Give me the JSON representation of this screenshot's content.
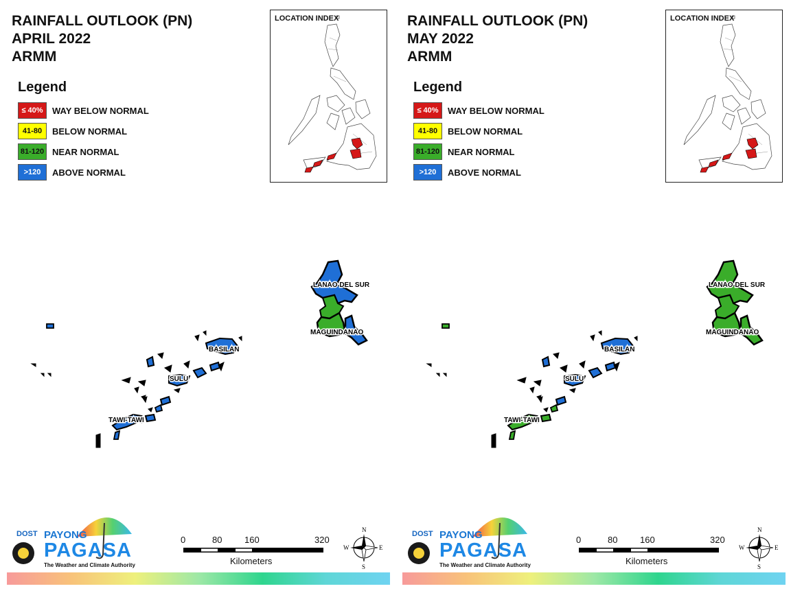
{
  "panels": [
    {
      "title_line1": "RAINFALL OUTLOOK (PN)",
      "title_line2": "APRIL 2022",
      "title_line3": "ARMM",
      "region_fill": {
        "lanao_del_sur": "#1f6fd6",
        "lanao_del_sur_mid": "#3aad2a",
        "maguindanao": "#3aad2a",
        "maguindanao_east": "#1f6fd6",
        "basilan": "#1f6fd6",
        "sulu": "#1f6fd6",
        "tawi_tawi": "#1f6fd6",
        "small_islands": "#1f6fd6"
      }
    },
    {
      "title_line1": "RAINFALL OUTLOOK (PN)",
      "title_line2": "MAY 2022",
      "title_line3": "ARMM",
      "region_fill": {
        "lanao_del_sur": "#3aad2a",
        "lanao_del_sur_mid": "#3aad2a",
        "maguindanao": "#3aad2a",
        "maguindanao_east": "#3aad2a",
        "basilan": "#1f6fd6",
        "sulu": "#1f6fd6",
        "tawi_tawi": "#3aad2a",
        "small_islands": "#3aad2a"
      }
    }
  ],
  "legend": {
    "title": "Legend",
    "items": [
      {
        "code": "≤ 40%",
        "label": "WAY BELOW NORMAL",
        "color": "#d51818"
      },
      {
        "code": "41-80",
        "label": "BELOW NORMAL",
        "color": "#ffff00"
      },
      {
        "code": "81-120",
        "label": "NEAR NORMAL",
        "color": "#3aad2a"
      },
      {
        "code": ">120",
        "label": "ABOVE NORMAL",
        "color": "#1f6fd6"
      }
    ]
  },
  "location_index": {
    "title": "LOCATION INDEX",
    "highlight_color": "#d51818"
  },
  "labels": {
    "lanao_del_sur": "LANAO DEL SUR",
    "maguindanao": "MAGUINDANAO",
    "basilan": "BASILAN",
    "sulu": "SULU",
    "tawi_tawi": "TAWI-TAWI"
  },
  "scale_bar": {
    "ticks": [
      "0",
      "80",
      "160",
      "320"
    ],
    "unit": "Kilometers"
  },
  "compass": {
    "n": "N",
    "s": "S",
    "e": "E",
    "w": "W"
  },
  "logo": {
    "dost": "DOST",
    "payong": "PAYONG",
    "pagasa": "PAGASA",
    "tagline": "The Weather and Climate Authority"
  }
}
